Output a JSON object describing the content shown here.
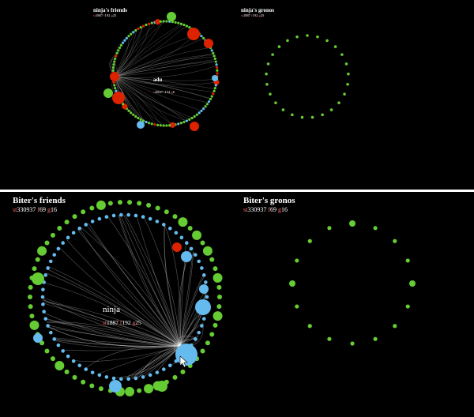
{
  "top": {
    "friends_panel": {
      "title": "ninja's friends",
      "stats": [
        {
          "k": "st",
          "v": "1887"
        },
        {
          "k": "f",
          "v": "192"
        },
        {
          "k": "g",
          "v": "25"
        }
      ],
      "center": {
        "name": "adu",
        "stats": [
          {
            "k": "st",
            "v": "6847"
          },
          {
            "k": "f",
            "v": "154"
          },
          {
            "k": "g",
            "v": "6"
          }
        ]
      }
    },
    "gronos_panel": {
      "title": "ninja's gronos",
      "stats": [
        {
          "k": "st",
          "v": "1887"
        },
        {
          "k": "f",
          "v": "192"
        },
        {
          "k": "g",
          "v": "25"
        }
      ]
    }
  },
  "bottom": {
    "friends_panel": {
      "title": "Biter's friends",
      "stats": [
        {
          "k": "st",
          "v": "330937"
        },
        {
          "k": "f",
          "v": "69"
        },
        {
          "k": "g",
          "v": "16"
        }
      ],
      "center": {
        "name": "ninja",
        "stats": [
          {
            "k": "st",
            "v": "1887"
          },
          {
            "k": "f",
            "v": "192"
          },
          {
            "k": "g",
            "v": "25"
          }
        ]
      }
    },
    "gronos_panel": {
      "title": "Biter's gronos",
      "stats": [
        {
          "k": "st",
          "v": "330937"
        },
        {
          "k": "f",
          "v": "69"
        },
        {
          "k": "g",
          "v": "16"
        }
      ]
    }
  },
  "colors": {
    "green": "#66cc33",
    "blue": "#66bbee",
    "red": "#dd2200",
    "edge": "#ffffff",
    "background": "#000000",
    "stat_key": "#ff6b6b"
  },
  "cursor_icon": "arrow-cursor-icon"
}
